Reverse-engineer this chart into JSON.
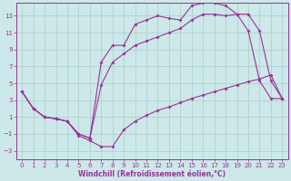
{
  "background_color": "#cce8e8",
  "grid_color": "#aacccc",
  "line_color": "#993399",
  "xlabel": "Windchill (Refroidissement éolien,°C)",
  "xlim": [
    -0.5,
    23.5
  ],
  "ylim": [
    -4,
    14.5
  ],
  "xticks": [
    0,
    1,
    2,
    3,
    4,
    5,
    6,
    7,
    8,
    9,
    10,
    11,
    12,
    13,
    14,
    15,
    16,
    17,
    18,
    19,
    20,
    21,
    22,
    23
  ],
  "yticks": [
    -3,
    -1,
    1,
    3,
    5,
    7,
    9,
    11,
    13
  ],
  "line1_x": [
    0,
    1,
    2,
    3,
    4,
    5,
    6,
    7,
    8,
    9,
    10,
    11,
    12,
    13,
    14,
    15,
    16,
    17,
    18,
    19,
    20,
    21,
    22,
    23
  ],
  "line1_y": [
    4,
    2,
    1,
    0.8,
    0.5,
    -1.2,
    -1.8,
    -2.5,
    -2.5,
    -0.5,
    0.5,
    1.2,
    1.8,
    2.2,
    2.7,
    3.2,
    3.6,
    4.0,
    4.4,
    4.8,
    5.2,
    5.5,
    6.0,
    3.2
  ],
  "line2_x": [
    0,
    1,
    2,
    3,
    4,
    5,
    6,
    7,
    8,
    9,
    10,
    11,
    12,
    13,
    14,
    15,
    16,
    17,
    18,
    19,
    20,
    21,
    22,
    23
  ],
  "line2_y": [
    4,
    2,
    1,
    0.8,
    0.5,
    -1.0,
    -1.5,
    4.8,
    7.5,
    8.5,
    9.5,
    10.0,
    10.5,
    11.0,
    11.5,
    12.5,
    13.2,
    13.2,
    13.0,
    13.2,
    13.2,
    11.2,
    5.3,
    3.2
  ],
  "line3_x": [
    0,
    1,
    2,
    3,
    4,
    5,
    6,
    7,
    8,
    9,
    10,
    11,
    12,
    13,
    14,
    15,
    16,
    17,
    18,
    19,
    20,
    21,
    22,
    23
  ],
  "line3_y": [
    4,
    2,
    1,
    0.8,
    0.5,
    -1.0,
    -1.5,
    7.5,
    9.5,
    9.5,
    12.0,
    12.5,
    13.0,
    12.7,
    12.5,
    14.2,
    14.5,
    14.5,
    14.2,
    13.2,
    11.2,
    5.3,
    3.2,
    3.2
  ]
}
